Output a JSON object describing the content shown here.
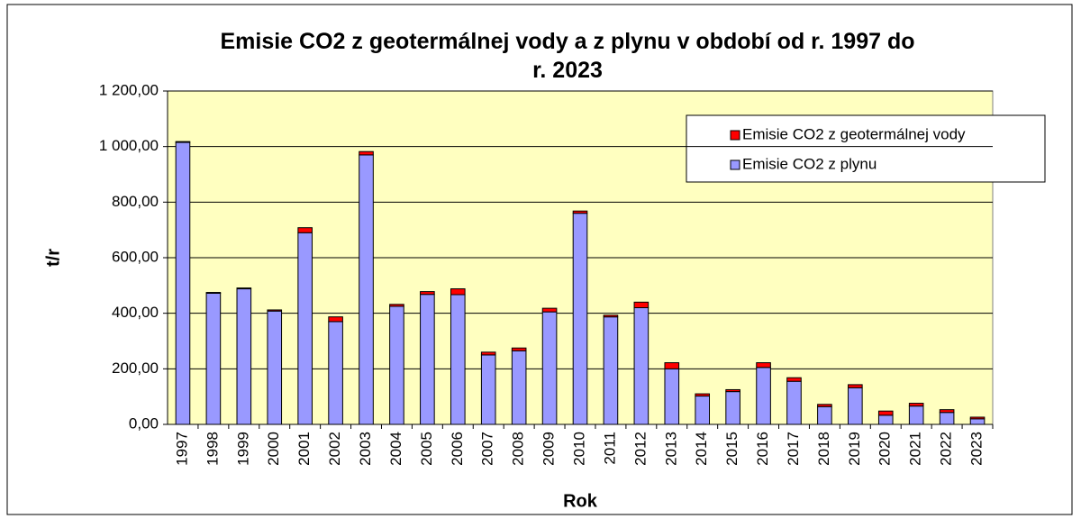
{
  "chart_data": {
    "type": "stacked_bar",
    "title": "Emisie CO2 z geotermálnej vody a z plynu v období od r. 1997 do r. 2023",
    "x_label": "Rok",
    "y_label": "t/r",
    "categories": [
      "1997",
      "1998",
      "1999",
      "2000",
      "2001",
      "2002",
      "2003",
      "2004",
      "2005",
      "2006",
      "2007",
      "2008",
      "2009",
      "2010",
      "2011",
      "2012",
      "2013",
      "2014",
      "2015",
      "2016",
      "2017",
      "2018",
      "2019",
      "2020",
      "2021",
      "2022",
      "2023"
    ],
    "series": [
      {
        "name": "Emisie CO2 z plynu",
        "color": "#9999ff",
        "values": [
          1015,
          472,
          488,
          408,
          690,
          370,
          970,
          425,
          468,
          467,
          250,
          265,
          405,
          760,
          387,
          420,
          200,
          102,
          118,
          205,
          155,
          64,
          132,
          33,
          66,
          43,
          20
        ]
      },
      {
        "name": "Emisie CO2 z geotermálnej vody",
        "color": "#ff0000",
        "values": [
          3,
          3,
          3,
          4,
          18,
          17,
          12,
          7,
          10,
          21,
          10,
          10,
          13,
          8,
          6,
          20,
          22,
          8,
          7,
          17,
          13,
          8,
          11,
          15,
          10,
          10,
          6
        ]
      }
    ],
    "ylim": [
      0,
      1200
    ],
    "yticks": [
      {
        "value": 0,
        "label": "0,00"
      },
      {
        "value": 200,
        "label": "200,00"
      },
      {
        "value": 400,
        "label": "400,00"
      },
      {
        "value": 600,
        "label": "600,00"
      },
      {
        "value": 800,
        "label": "800,00"
      },
      {
        "value": 1000,
        "label": "1 000,00"
      },
      {
        "value": 1200,
        "label": "1 200,00"
      }
    ],
    "grid": true
  }
}
